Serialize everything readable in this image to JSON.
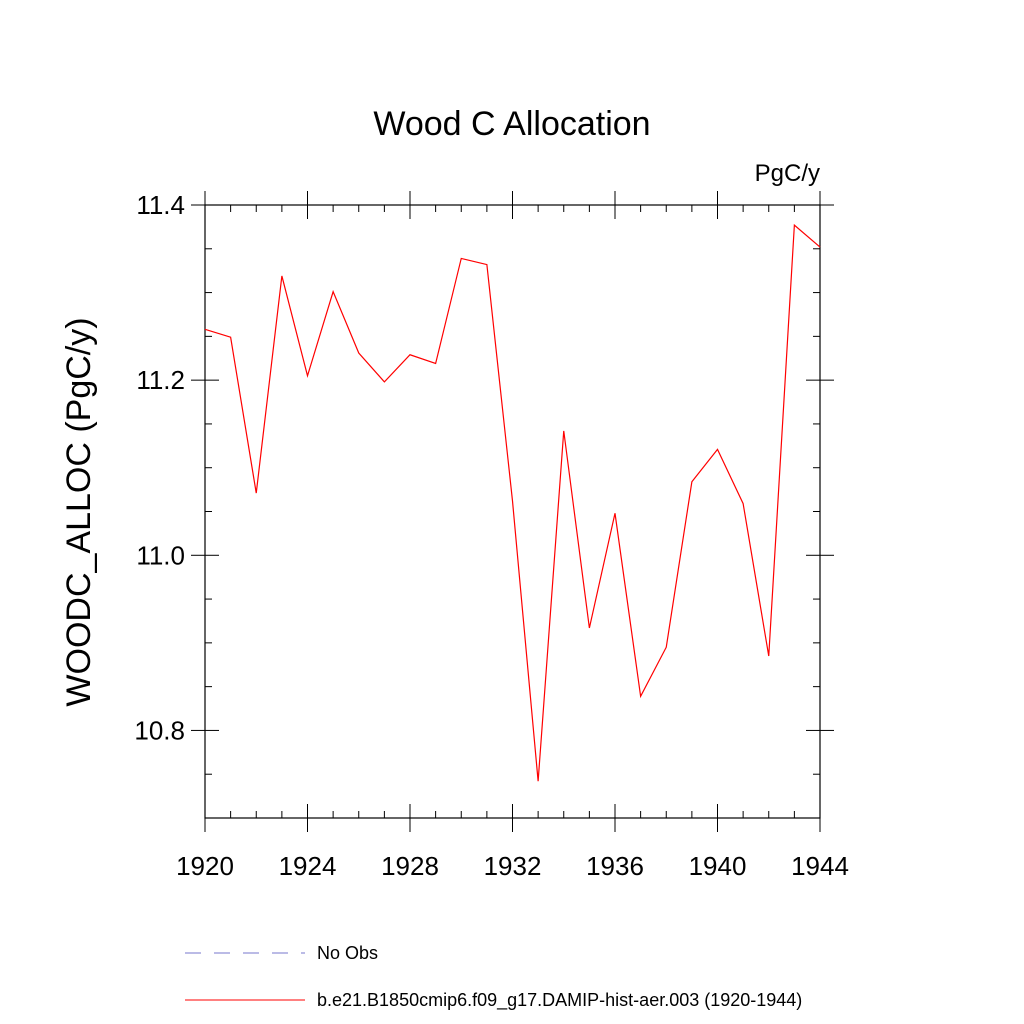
{
  "chart_data": {
    "type": "line",
    "title": "Wood C Allocation",
    "units": "PgC/y",
    "ylabel": "WOODC_ALLOC  (PgC/y)",
    "xlabel": "",
    "xlim": [
      1920,
      1944
    ],
    "ylim": [
      10.7,
      11.4
    ],
    "x_ticks": [
      1920,
      1924,
      1928,
      1932,
      1936,
      1940,
      1944
    ],
    "x_tick_labels": [
      "1920",
      "1924",
      "1928",
      "1932",
      "1936",
      "1940",
      "1944"
    ],
    "y_ticks": [
      10.8,
      11.0,
      11.2,
      11.4
    ],
    "y_tick_labels": [
      "10.8",
      "11.0",
      "11.2",
      "11.4"
    ],
    "grid": false,
    "legend_position": "bottom",
    "legend": [
      {
        "label": "No Obs",
        "style": "dashed",
        "color": "#7777cc"
      },
      {
        "label": "b.e21.B1850cmip6.f09_g17.DAMIP-hist-aer.003 (1920-1944)",
        "style": "solid",
        "color": "#ff0000"
      }
    ],
    "series": [
      {
        "name": "b.e21.B1850cmip6.f09_g17.DAMIP-hist-aer.003 (1920-1944)",
        "color": "#ff0000",
        "x": [
          1920,
          1921,
          1922,
          1923,
          1924,
          1925,
          1926,
          1927,
          1928,
          1929,
          1930,
          1931,
          1932,
          1933,
          1934,
          1935,
          1936,
          1937,
          1938,
          1939,
          1940,
          1941,
          1942,
          1943,
          1944
        ],
        "values": [
          11.258,
          11.249,
          11.071,
          11.319,
          11.205,
          11.301,
          11.231,
          11.198,
          11.229,
          11.219,
          11.339,
          11.332,
          11.062,
          10.742,
          11.142,
          10.917,
          11.048,
          10.839,
          10.895,
          11.084,
          11.121,
          11.059,
          10.885,
          11.377,
          11.352
        ]
      }
    ]
  }
}
